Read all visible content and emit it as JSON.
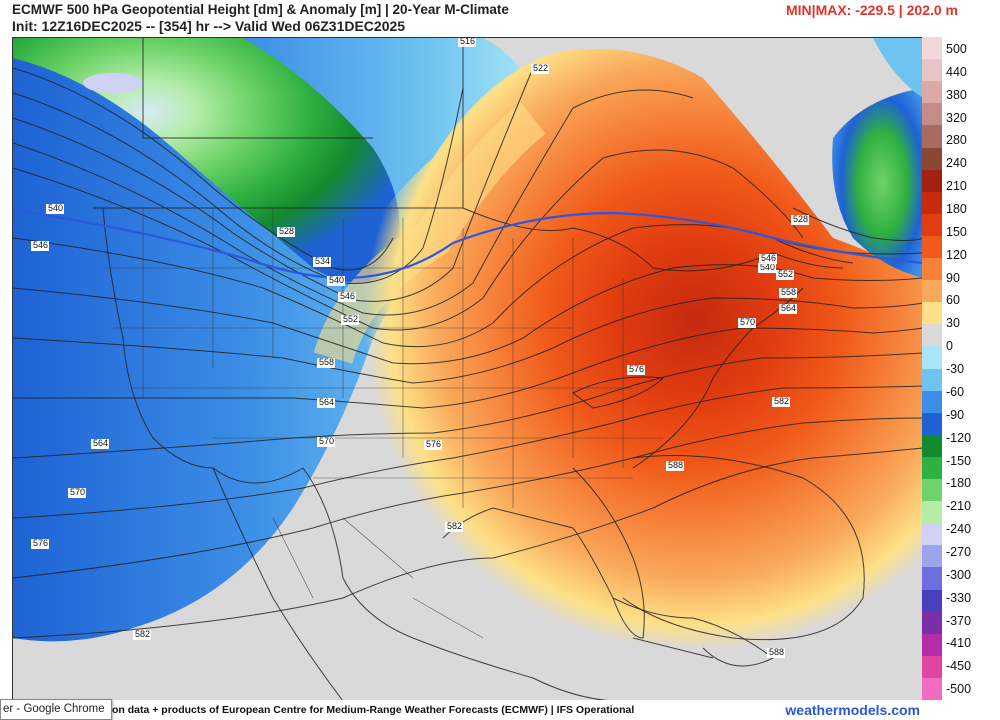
{
  "header": {
    "line1": "ECMWF 500 hPa Geopotential Height [dm] & Anomaly [m] | 20-Year M-Climate",
    "line2": "Init: 12Z16DEC2025 -- [354] hr --> Valid Wed 06Z31DEC2025",
    "minmax": "MIN|MAX: -229.5 | 202.0 m"
  },
  "colorbar": {
    "labels": [
      "500",
      "440",
      "380",
      "320",
      "280",
      "240",
      "210",
      "180",
      "150",
      "120",
      "90",
      "60",
      "30",
      "0",
      "-30",
      "-60",
      "-90",
      "-120",
      "-150",
      "-180",
      "-210",
      "-240",
      "-270",
      "-300",
      "-330",
      "-370",
      "-410",
      "-450",
      "-500"
    ],
    "colors": [
      "#f2d8d8",
      "#e8c4c4",
      "#d9aaa6",
      "#c48c86",
      "#a96b61",
      "#8c4636",
      "#a32112",
      "#c82a10",
      "#e23d10",
      "#f05a1a",
      "#f6823a",
      "#f9a95b",
      "#fde087",
      "#d9d9d9",
      "#a8e6f5",
      "#6ec3f0",
      "#3c8ee6",
      "#1e62d4",
      "#138a2e",
      "#2fb040",
      "#6fd36a",
      "#b3eda8",
      "#cfd2f5",
      "#9ea3ee",
      "#6c6fdd",
      "#4a3fbf",
      "#7a2fa8",
      "#b32ca8",
      "#e0459f",
      "#f06bc1"
    ]
  },
  "contour_labels": [
    {
      "text": "516"
    },
    {
      "text": "522"
    },
    {
      "text": "528"
    },
    {
      "text": "534"
    },
    {
      "text": "540"
    },
    {
      "text": "540"
    },
    {
      "text": "540"
    },
    {
      "text": "546"
    },
    {
      "text": "546"
    },
    {
      "text": "552"
    },
    {
      "text": "552"
    },
    {
      "text": "558"
    },
    {
      "text": "558"
    },
    {
      "text": "564"
    },
    {
      "text": "564"
    },
    {
      "text": "564"
    },
    {
      "text": "570"
    },
    {
      "text": "570"
    },
    {
      "text": "576"
    },
    {
      "text": "576"
    },
    {
      "text": "576"
    },
    {
      "text": "582"
    },
    {
      "text": "582"
    },
    {
      "text": "582"
    },
    {
      "text": "588"
    },
    {
      "text": "588"
    },
    {
      "text": "528"
    },
    {
      "text": "570"
    },
    {
      "text": "546"
    }
  ],
  "footer": {
    "credit": "on data + products of European Centre for Medium-Range Weather Forecasts (ECMWF) | IFS Operational",
    "brand": "weathermodels.com"
  },
  "tooltip": "er - Google Chrome"
}
